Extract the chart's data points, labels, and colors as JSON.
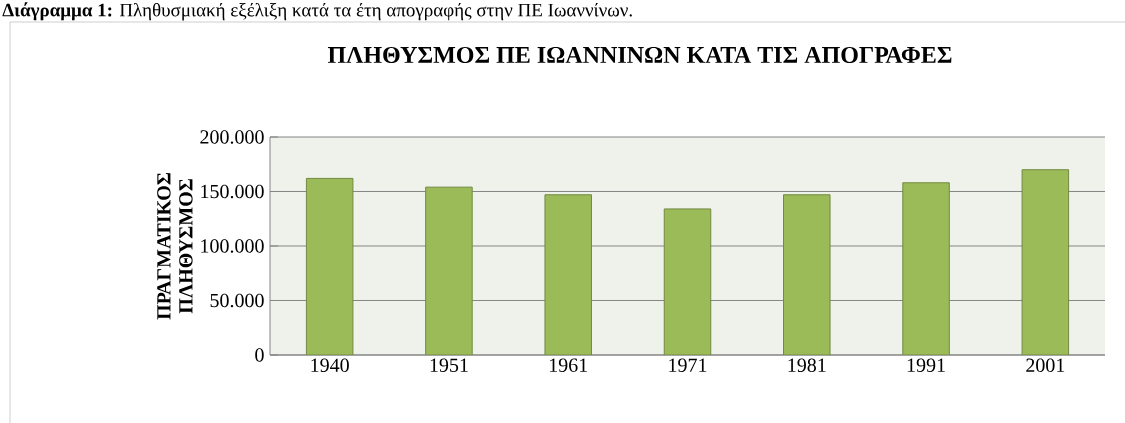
{
  "chart_data": {
    "type": "bar",
    "title": "ΠΛΗΘΥΣΜΟΣ ΠΕ ΙΩΑΝΝΙΝΩΝ ΚΑΤΑ ΤΙΣ ΑΠΟΓΡΑΦΕΣ",
    "annotations": [
      "**Διάγραμμα 1:** Πληθυσμιακή εξέλιξη κατά τα έτη απογραφής στην ΠΕ Ιωαννίνων."
    ],
    "ylabel": "ΠΡΑΓΜΑΤΙΚΟΣ ΠΛΗΘΥΣΜΟΣ",
    "categories": [
      "1940",
      "1951",
      "1961",
      "1971",
      "1981",
      "1991",
      "2001"
    ],
    "values": [
      162000,
      154000,
      147000,
      134000,
      147000,
      158000,
      170000
    ],
    "color": "#9bbb59",
    "ylim": [
      0,
      200000
    ],
    "yticks": [
      {
        "value": 0,
        "label": "0"
      },
      {
        "value": 50000,
        "label": "50.000"
      },
      {
        "value": 100000,
        "label": "100.000"
      },
      {
        "value": 150000,
        "label": "150.000"
      },
      {
        "value": 200000,
        "label": "200.000"
      }
    ],
    "grid": "y"
  }
}
